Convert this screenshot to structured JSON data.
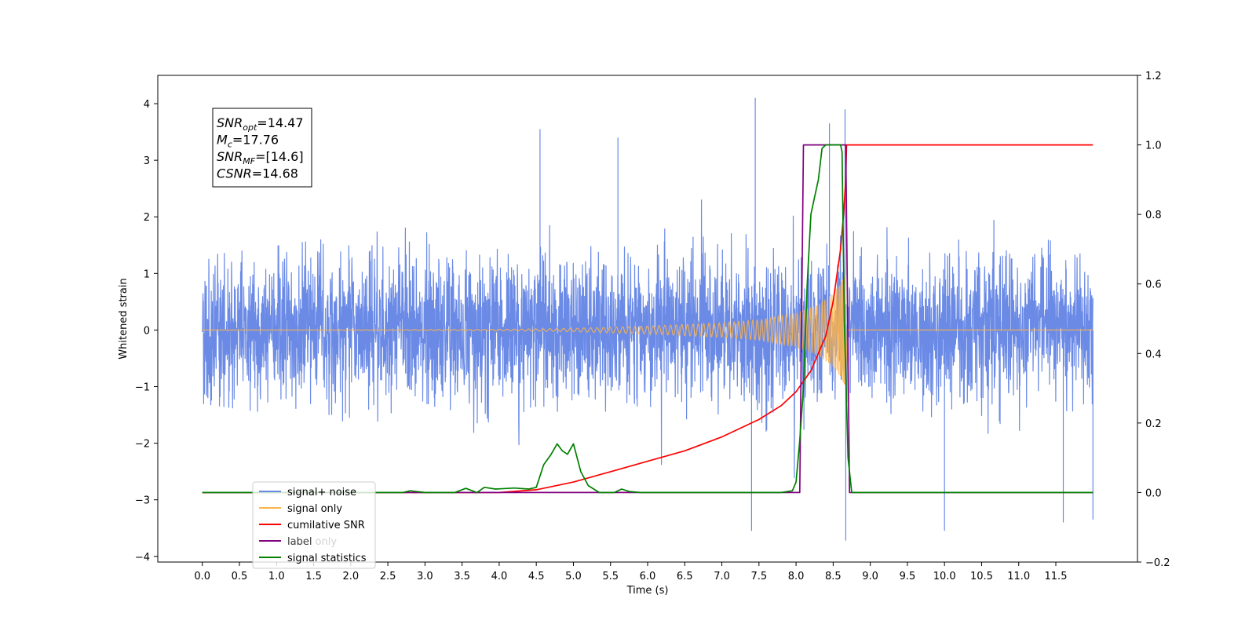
{
  "chart_data": {
    "type": "line",
    "title": "",
    "xlabel": "Time (s)",
    "ylabel": "Whitened strain",
    "xlim": [
      -0.6,
      12.6
    ],
    "ylim_left": [
      -4.1,
      4.5
    ],
    "ylim_right": [
      -0.2,
      1.2
    ],
    "x_ticks": [
      0.0,
      0.5,
      1.0,
      1.5,
      2.0,
      2.5,
      3.0,
      3.5,
      4.0,
      4.5,
      5.0,
      5.5,
      6.0,
      6.5,
      7.0,
      7.5,
      8.0,
      8.5,
      9.0,
      9.5,
      10.0,
      10.5,
      11.0,
      11.5
    ],
    "x_tick_labels": [
      "0.0",
      "0.5",
      "1.0",
      "1.5",
      "2.0",
      "2.5",
      "3.0",
      "3.5",
      "4.0",
      "4.5",
      "5.0",
      "5.5",
      "6.0",
      "6.5",
      "7.0",
      "7.5",
      "8.0",
      "8.5",
      "9.0",
      "9.5",
      "10.0",
      "10.5",
      "11.0",
      "11.5"
    ],
    "y_left_ticks": [
      4,
      3,
      2,
      1,
      0,
      -1,
      -2,
      -3,
      -4
    ],
    "y_left_tick_labels": [
      "4",
      "3",
      "2",
      "1",
      "0",
      "−1",
      "−2",
      "−3",
      "−4"
    ],
    "y_right_ticks": [
      1.2,
      1.0,
      0.8,
      0.6,
      0.4,
      0.2,
      0.0,
      -0.2
    ],
    "y_right_tick_labels": [
      "1.2",
      "1.0",
      "0.8",
      "0.6",
      "0.4",
      "0.2",
      "0.0",
      "−0.2"
    ],
    "grid": false,
    "legend_position": "bottom-left",
    "series": [
      {
        "name": "signal+ noise",
        "axis": "left",
        "color": "#6a8ae6",
        "kind": "noise",
        "x_range": [
          0.0,
          12.0
        ],
        "sigma": 0.62,
        "envelope_points": [
          [
            0.0,
            1.3
          ],
          [
            8.67,
            2.9
          ],
          [
            12.0,
            1.3
          ]
        ],
        "peaks": [
          [
            7.45,
            4.1
          ],
          [
            8.66,
            3.9
          ],
          [
            8.45,
            3.65
          ],
          [
            4.55,
            3.55
          ],
          [
            5.6,
            3.4
          ],
          [
            7.4,
            -3.55
          ],
          [
            8.67,
            -3.72
          ],
          [
            10.0,
            -3.55
          ],
          [
            11.6,
            -3.4
          ],
          [
            12.0,
            -3.35
          ]
        ]
      },
      {
        "name": "signal only",
        "axis": "left",
        "color": "#ffb347",
        "kind": "chirp",
        "x_range": [
          0.0,
          8.67
        ],
        "amplitude_points": [
          [
            0.0,
            0.0
          ],
          [
            2.0,
            0.003
          ],
          [
            4.0,
            0.012
          ],
          [
            5.0,
            0.03
          ],
          [
            6.0,
            0.07
          ],
          [
            7.0,
            0.13
          ],
          [
            7.5,
            0.18
          ],
          [
            8.0,
            0.3
          ],
          [
            8.3,
            0.45
          ],
          [
            8.5,
            0.65
          ],
          [
            8.6,
            0.85
          ],
          [
            8.67,
            1.0
          ]
        ]
      },
      {
        "name": "cumilative SNR",
        "axis": "right",
        "color": "#ff0000",
        "x": [
          0.0,
          4.0,
          4.5,
          5.0,
          5.5,
          6.0,
          6.5,
          7.0,
          7.5,
          7.8,
          8.0,
          8.2,
          8.4,
          8.5,
          8.6,
          8.64,
          8.67,
          8.68,
          12.0
        ],
        "y": [
          0.0,
          0.0,
          0.008,
          0.03,
          0.06,
          0.09,
          0.12,
          0.16,
          0.21,
          0.25,
          0.29,
          0.35,
          0.45,
          0.55,
          0.7,
          0.8,
          0.9,
          1.0,
          1.0
        ]
      },
      {
        "name": "label",
        "axis": "right",
        "color": "#800080",
        "x": [
          0.0,
          8.05,
          8.1,
          8.67,
          8.72,
          12.0
        ],
        "y": [
          0.0,
          0.0,
          1.0,
          1.0,
          0.0,
          0.0
        ]
      },
      {
        "name": "signal statistics",
        "axis": "right",
        "color": "#008000",
        "x": [
          0.0,
          2.7,
          2.8,
          3.0,
          3.4,
          3.55,
          3.7,
          3.8,
          3.95,
          4.2,
          4.4,
          4.5,
          4.6,
          4.7,
          4.78,
          4.85,
          4.92,
          5.0,
          5.1,
          5.2,
          5.35,
          5.55,
          5.65,
          5.75,
          5.9,
          6.0,
          7.8,
          7.95,
          8.0,
          8.05,
          8.1,
          8.15,
          8.2,
          8.25,
          8.3,
          8.35,
          8.4,
          8.6,
          8.62,
          8.65,
          8.7,
          8.75,
          12.0
        ],
        "y": [
          0.0,
          0.0,
          0.005,
          0.0,
          0.0,
          0.012,
          0.0,
          0.015,
          0.01,
          0.013,
          0.01,
          0.015,
          0.08,
          0.11,
          0.14,
          0.12,
          0.11,
          0.14,
          0.06,
          0.02,
          0.0,
          0.0,
          0.01,
          0.003,
          0.0,
          0.0,
          0.0,
          0.005,
          0.03,
          0.15,
          0.3,
          0.6,
          0.8,
          0.85,
          0.9,
          0.99,
          1.0,
          1.0,
          0.98,
          0.5,
          0.1,
          0.0,
          0.0
        ]
      }
    ],
    "annotation": {
      "lines": [
        {
          "sym": "SNR",
          "sub": "opt",
          "rest": "=14.47"
        },
        {
          "sym": "M",
          "sub": "c",
          "rest": "=17.76"
        },
        {
          "sym": "SNR",
          "sub": "MF",
          "rest": "=[14.6]"
        },
        {
          "sym": "CSNR",
          "sub": "",
          "rest": "=14.68"
        }
      ]
    },
    "legend_ghost_text": [
      "label only"
    ]
  }
}
